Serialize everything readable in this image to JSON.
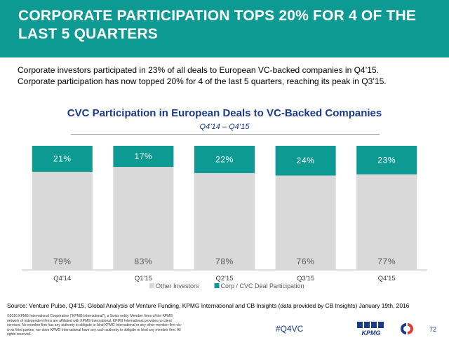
{
  "header": {
    "title": "CORPORATE PARTICIPATION TOPS 20% FOR 4 OF THE\nLAST 5 QUARTERS",
    "bg_color": "#0d9a93"
  },
  "intro": {
    "line1": "Corporate investors participated in 23% of all deals to European VC-backed companies in Q4’15.",
    "line2": "Corporate participation has now topped 20% for 4 of the last 5 quarters, reaching its peak in Q3’15."
  },
  "chart_data": {
    "type": "bar",
    "stacked": true,
    "title": "CVC Participation in European Deals to VC-Backed Companies",
    "subtitle": "Q4’14 – Q4’15",
    "categories": [
      "Q4'14",
      "Q1'15",
      "Q2'15",
      "Q3'15",
      "Q4'15"
    ],
    "series": [
      {
        "name": "Other Investors",
        "color": "#d9d9d9",
        "values": [
          79,
          83,
          78,
          76,
          77
        ],
        "labels": [
          "79%",
          "83%",
          "78%",
          "76%",
          "77%"
        ]
      },
      {
        "name": "Corp / CVC Deal Participation",
        "color": "#0d9a93",
        "values": [
          21,
          17,
          22,
          24,
          23
        ],
        "labels": [
          "21%",
          "17%",
          "22%",
          "24%",
          "23%"
        ]
      }
    ],
    "ylim": [
      0,
      100
    ],
    "grid": false,
    "legend_position": "bottom"
  },
  "footer": {
    "source": "Source: Venture Pulse, Q4'15, Global Analysis of Venture Funding, KPMG International and CB Insights (data provided by CB Insights) January 19th, 2016",
    "copyright": "©2016 KPMG International Cooperative (“KPMG International”), a Swiss entity. Member firms of the KPMG network of independent firms are affiliated with KPMG International. KPMG International provides no client services. No member firm has any authority to obligate or bind KPMG International or any other member firm vis-à-vis third parties, nor does KPMG International have any such authority to obligate or bind any member firm. All rights reserved.",
    "hashtag": "#Q4VC",
    "logo_kpmg": "KPMG",
    "logo_cb": "CB",
    "page_number": "72"
  }
}
